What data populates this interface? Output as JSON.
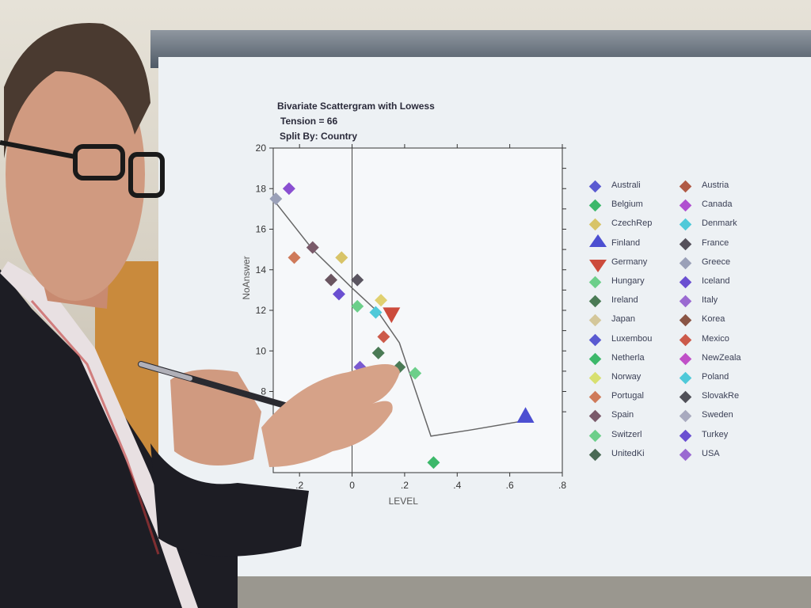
{
  "chart_data": {
    "type": "scatter",
    "title": "Bivariate Scattergram with Lowess",
    "subtitle_lines": [
      "Tension = 66",
      "Split By: Country"
    ],
    "xlabel": "LEVEL",
    "ylabel": "NoAnswer",
    "xlim": [
      -0.3,
      0.8
    ],
    "ylim": [
      4,
      20
    ],
    "x_ticks": [
      ".2",
      "0",
      ".2",
      ".4",
      ".6",
      ".8"
    ],
    "x_tick_values": [
      -0.2,
      0,
      0.2,
      0.4,
      0.6,
      0.8
    ],
    "y_ticks": [
      "8",
      "10",
      "12",
      "14",
      "16",
      "18",
      "20"
    ],
    "y_tick_values": [
      8,
      10,
      12,
      14,
      16,
      18,
      20
    ],
    "points": [
      {
        "x": -0.29,
        "y": 17.5,
        "color": "#9aa0b8"
      },
      {
        "x": -0.24,
        "y": 18.0,
        "color": "#8a4fd1"
      },
      {
        "x": -0.22,
        "y": 14.6,
        "color": "#cf7a5a"
      },
      {
        "x": -0.15,
        "y": 15.1,
        "color": "#7a5a6a"
      },
      {
        "x": -0.08,
        "y": 13.5,
        "color": "#6a5560"
      },
      {
        "x": -0.05,
        "y": 12.8,
        "color": "#6a4fd1"
      },
      {
        "x": -0.04,
        "y": 14.6,
        "color": "#d8c468"
      },
      {
        "x": 0.02,
        "y": 13.5,
        "color": "#5a5560"
      },
      {
        "x": 0.02,
        "y": 12.2,
        "color": "#6ccf8a"
      },
      {
        "x": 0.03,
        "y": 9.2,
        "color": "#7a5ad1"
      },
      {
        "x": 0.09,
        "y": 11.9,
        "color": "#4fc9d9"
      },
      {
        "x": 0.11,
        "y": 12.5,
        "color": "#e0d070"
      },
      {
        "x": 0.12,
        "y": 10.7,
        "color": "#cc5a4a"
      },
      {
        "x": 0.1,
        "y": 9.9,
        "color": "#4a7a55"
      },
      {
        "x": 0.18,
        "y": 9.2,
        "color": "#4a7a55"
      },
      {
        "x": 0.24,
        "y": 8.9,
        "color": "#6ccf8a"
      },
      {
        "x": 0.31,
        "y": 4.5,
        "color": "#3cb86a"
      }
    ],
    "triangles": [
      {
        "x": 0.66,
        "y": 6.8,
        "dir": "up",
        "color": "#4c4fd1"
      },
      {
        "x": 0.15,
        "y": 11.8,
        "dir": "down",
        "color": "#cc4b3c"
      }
    ],
    "lowess_line": [
      {
        "x": -0.29,
        "y": 17.3
      },
      {
        "x": -0.15,
        "y": 15.0
      },
      {
        "x": 0.0,
        "y": 13.1
      },
      {
        "x": 0.1,
        "y": 11.9
      },
      {
        "x": 0.18,
        "y": 10.4
      },
      {
        "x": 0.3,
        "y": 5.8
      },
      {
        "x": 0.45,
        "y": 6.1
      },
      {
        "x": 0.63,
        "y": 6.5
      }
    ],
    "legend": [
      {
        "label": "Australi",
        "color": "#5a5ad1"
      },
      {
        "label": "Austria",
        "color": "#b05a45"
      },
      {
        "label": "Belgium",
        "color": "#3cb86a"
      },
      {
        "label": "Canada",
        "color": "#b050d0"
      },
      {
        "label": "CzechRep",
        "color": "#d8c468"
      },
      {
        "label": "Denmark",
        "color": "#4fc9d9"
      },
      {
        "label": "Finland",
        "color": "#4c4fd1",
        "marker": "tri-up"
      },
      {
        "label": "France",
        "color": "#55505a"
      },
      {
        "label": "Germany",
        "color": "#cc4b3c",
        "marker": "tri-down"
      },
      {
        "label": "Greece",
        "color": "#9aa0b8"
      },
      {
        "label": "Hungary",
        "color": "#6ccf8a"
      },
      {
        "label": "Iceland",
        "color": "#6a4fd1"
      },
      {
        "label": "Ireland",
        "color": "#4a7a55"
      },
      {
        "label": "Italy",
        "color": "#9a6ad1"
      },
      {
        "label": "Japan",
        "color": "#d4c79a"
      },
      {
        "label": "Korea",
        "color": "#8a5545"
      },
      {
        "label": "Luxembou",
        "color": "#5a5ad1"
      },
      {
        "label": "Mexico",
        "color": "#cc5a4a"
      },
      {
        "label": "Netherla",
        "color": "#3cb86a"
      },
      {
        "label": "NewZeala",
        "color": "#c050c8"
      },
      {
        "label": "Norway",
        "color": "#d8e070"
      },
      {
        "label": "Poland",
        "color": "#4fc9d9"
      },
      {
        "label": "Portugal",
        "color": "#cf7a5a"
      },
      {
        "label": "SlovakRe",
        "color": "#505058"
      },
      {
        "label": "Spain",
        "color": "#7a5a6a"
      },
      {
        "label": "Sweden",
        "color": "#a8aabf"
      },
      {
        "label": "Switzerl",
        "color": "#6ccf8a"
      },
      {
        "label": "Turkey",
        "color": "#6a4fd1"
      },
      {
        "label": "UnitedKi",
        "color": "#4a6a55"
      },
      {
        "label": "USA",
        "color": "#9a6ad1"
      }
    ]
  }
}
